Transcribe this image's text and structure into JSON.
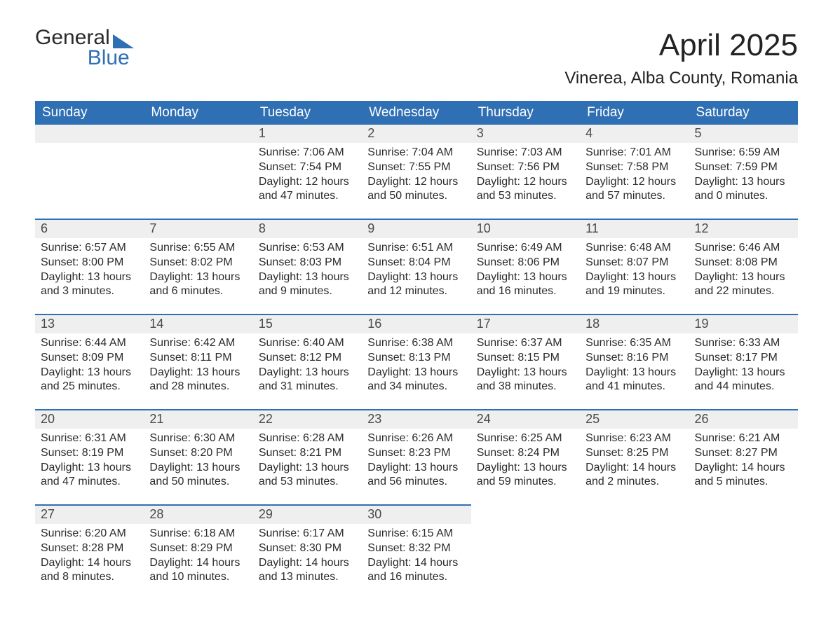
{
  "brand": {
    "name1": "General",
    "name2": "Blue",
    "triangle_color": "#2f6fb4"
  },
  "title": "April 2025",
  "location": "Vinerea, Alba County, Romania",
  "colors": {
    "header_bg": "#2f6fb4",
    "header_text": "#ffffff",
    "daynum_bg": "#efefef",
    "row_divider": "#2f6fb4",
    "page_bg": "#ffffff",
    "body_text": "#2b2b2b"
  },
  "weekdays": [
    "Sunday",
    "Monday",
    "Tuesday",
    "Wednesday",
    "Thursday",
    "Friday",
    "Saturday"
  ],
  "weeks": [
    [
      {
        "day": "",
        "lines": []
      },
      {
        "day": "",
        "lines": []
      },
      {
        "day": "1",
        "lines": [
          "Sunrise: 7:06 AM",
          "Sunset: 7:54 PM",
          "Daylight: 12 hours and 47 minutes."
        ]
      },
      {
        "day": "2",
        "lines": [
          "Sunrise: 7:04 AM",
          "Sunset: 7:55 PM",
          "Daylight: 12 hours and 50 minutes."
        ]
      },
      {
        "day": "3",
        "lines": [
          "Sunrise: 7:03 AM",
          "Sunset: 7:56 PM",
          "Daylight: 12 hours and 53 minutes."
        ]
      },
      {
        "day": "4",
        "lines": [
          "Sunrise: 7:01 AM",
          "Sunset: 7:58 PM",
          "Daylight: 12 hours and 57 minutes."
        ]
      },
      {
        "day": "5",
        "lines": [
          "Sunrise: 6:59 AM",
          "Sunset: 7:59 PM",
          "Daylight: 13 hours and 0 minutes."
        ]
      }
    ],
    [
      {
        "day": "6",
        "lines": [
          "Sunrise: 6:57 AM",
          "Sunset: 8:00 PM",
          "Daylight: 13 hours and 3 minutes."
        ]
      },
      {
        "day": "7",
        "lines": [
          "Sunrise: 6:55 AM",
          "Sunset: 8:02 PM",
          "Daylight: 13 hours and 6 minutes."
        ]
      },
      {
        "day": "8",
        "lines": [
          "Sunrise: 6:53 AM",
          "Sunset: 8:03 PM",
          "Daylight: 13 hours and 9 minutes."
        ]
      },
      {
        "day": "9",
        "lines": [
          "Sunrise: 6:51 AM",
          "Sunset: 8:04 PM",
          "Daylight: 13 hours and 12 minutes."
        ]
      },
      {
        "day": "10",
        "lines": [
          "Sunrise: 6:49 AM",
          "Sunset: 8:06 PM",
          "Daylight: 13 hours and 16 minutes."
        ]
      },
      {
        "day": "11",
        "lines": [
          "Sunrise: 6:48 AM",
          "Sunset: 8:07 PM",
          "Daylight: 13 hours and 19 minutes."
        ]
      },
      {
        "day": "12",
        "lines": [
          "Sunrise: 6:46 AM",
          "Sunset: 8:08 PM",
          "Daylight: 13 hours and 22 minutes."
        ]
      }
    ],
    [
      {
        "day": "13",
        "lines": [
          "Sunrise: 6:44 AM",
          "Sunset: 8:09 PM",
          "Daylight: 13 hours and 25 minutes."
        ]
      },
      {
        "day": "14",
        "lines": [
          "Sunrise: 6:42 AM",
          "Sunset: 8:11 PM",
          "Daylight: 13 hours and 28 minutes."
        ]
      },
      {
        "day": "15",
        "lines": [
          "Sunrise: 6:40 AM",
          "Sunset: 8:12 PM",
          "Daylight: 13 hours and 31 minutes."
        ]
      },
      {
        "day": "16",
        "lines": [
          "Sunrise: 6:38 AM",
          "Sunset: 8:13 PM",
          "Daylight: 13 hours and 34 minutes."
        ]
      },
      {
        "day": "17",
        "lines": [
          "Sunrise: 6:37 AM",
          "Sunset: 8:15 PM",
          "Daylight: 13 hours and 38 minutes."
        ]
      },
      {
        "day": "18",
        "lines": [
          "Sunrise: 6:35 AM",
          "Sunset: 8:16 PM",
          "Daylight: 13 hours and 41 minutes."
        ]
      },
      {
        "day": "19",
        "lines": [
          "Sunrise: 6:33 AM",
          "Sunset: 8:17 PM",
          "Daylight: 13 hours and 44 minutes."
        ]
      }
    ],
    [
      {
        "day": "20",
        "lines": [
          "Sunrise: 6:31 AM",
          "Sunset: 8:19 PM",
          "Daylight: 13 hours and 47 minutes."
        ]
      },
      {
        "day": "21",
        "lines": [
          "Sunrise: 6:30 AM",
          "Sunset: 8:20 PM",
          "Daylight: 13 hours and 50 minutes."
        ]
      },
      {
        "day": "22",
        "lines": [
          "Sunrise: 6:28 AM",
          "Sunset: 8:21 PM",
          "Daylight: 13 hours and 53 minutes."
        ]
      },
      {
        "day": "23",
        "lines": [
          "Sunrise: 6:26 AM",
          "Sunset: 8:23 PM",
          "Daylight: 13 hours and 56 minutes."
        ]
      },
      {
        "day": "24",
        "lines": [
          "Sunrise: 6:25 AM",
          "Sunset: 8:24 PM",
          "Daylight: 13 hours and 59 minutes."
        ]
      },
      {
        "day": "25",
        "lines": [
          "Sunrise: 6:23 AM",
          "Sunset: 8:25 PM",
          "Daylight: 14 hours and 2 minutes."
        ]
      },
      {
        "day": "26",
        "lines": [
          "Sunrise: 6:21 AM",
          "Sunset: 8:27 PM",
          "Daylight: 14 hours and 5 minutes."
        ]
      }
    ],
    [
      {
        "day": "27",
        "lines": [
          "Sunrise: 6:20 AM",
          "Sunset: 8:28 PM",
          "Daylight: 14 hours and 8 minutes."
        ]
      },
      {
        "day": "28",
        "lines": [
          "Sunrise: 6:18 AM",
          "Sunset: 8:29 PM",
          "Daylight: 14 hours and 10 minutes."
        ]
      },
      {
        "day": "29",
        "lines": [
          "Sunrise: 6:17 AM",
          "Sunset: 8:30 PM",
          "Daylight: 14 hours and 13 minutes."
        ]
      },
      {
        "day": "30",
        "lines": [
          "Sunrise: 6:15 AM",
          "Sunset: 8:32 PM",
          "Daylight: 14 hours and 16 minutes."
        ]
      },
      {
        "day": "",
        "lines": []
      },
      {
        "day": "",
        "lines": []
      },
      {
        "day": "",
        "lines": []
      }
    ]
  ]
}
